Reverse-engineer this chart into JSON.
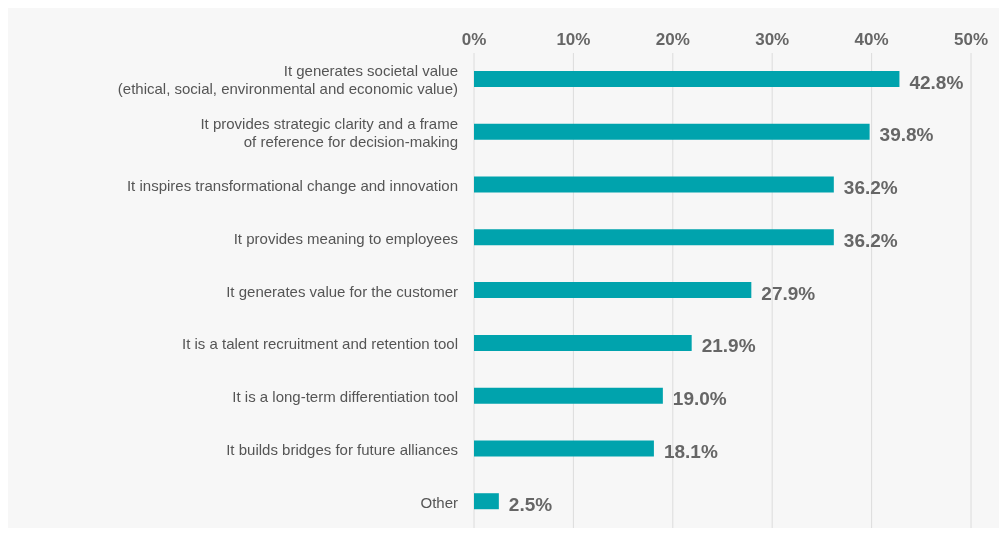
{
  "chart_data": {
    "type": "bar",
    "orientation": "horizontal",
    "categories": [
      "It generates societal value\n(ethical, social, environmental and economic value)",
      "It provides strategic clarity and a frame\nof reference for decision-making",
      "It inspires transformational change and innovation",
      "It provides meaning to employees",
      "It generates value for the customer",
      "It is a talent recruitment and retention tool",
      "It is a long-term differentiation tool",
      "It builds bridges for future alliances",
      "Other"
    ],
    "values": [
      42.8,
      39.8,
      36.2,
      36.2,
      27.9,
      21.9,
      19.0,
      18.1,
      2.5
    ],
    "value_labels": [
      "42.8%",
      "39.8%",
      "36.2%",
      "36.2%",
      "27.9%",
      "21.9%",
      "19.0%",
      "18.1%",
      "2.5%"
    ],
    "color": "#00a3ad",
    "xlim": [
      0,
      50
    ],
    "xticks": [
      {
        "value": 0,
        "label": "0%"
      },
      {
        "value": 10,
        "label": "10%"
      },
      {
        "value": 20,
        "label": "20%"
      },
      {
        "value": 30,
        "label": "30%"
      },
      {
        "value": 40,
        "label": "40%"
      },
      {
        "value": 50,
        "label": "50%"
      }
    ],
    "grid": "x"
  }
}
